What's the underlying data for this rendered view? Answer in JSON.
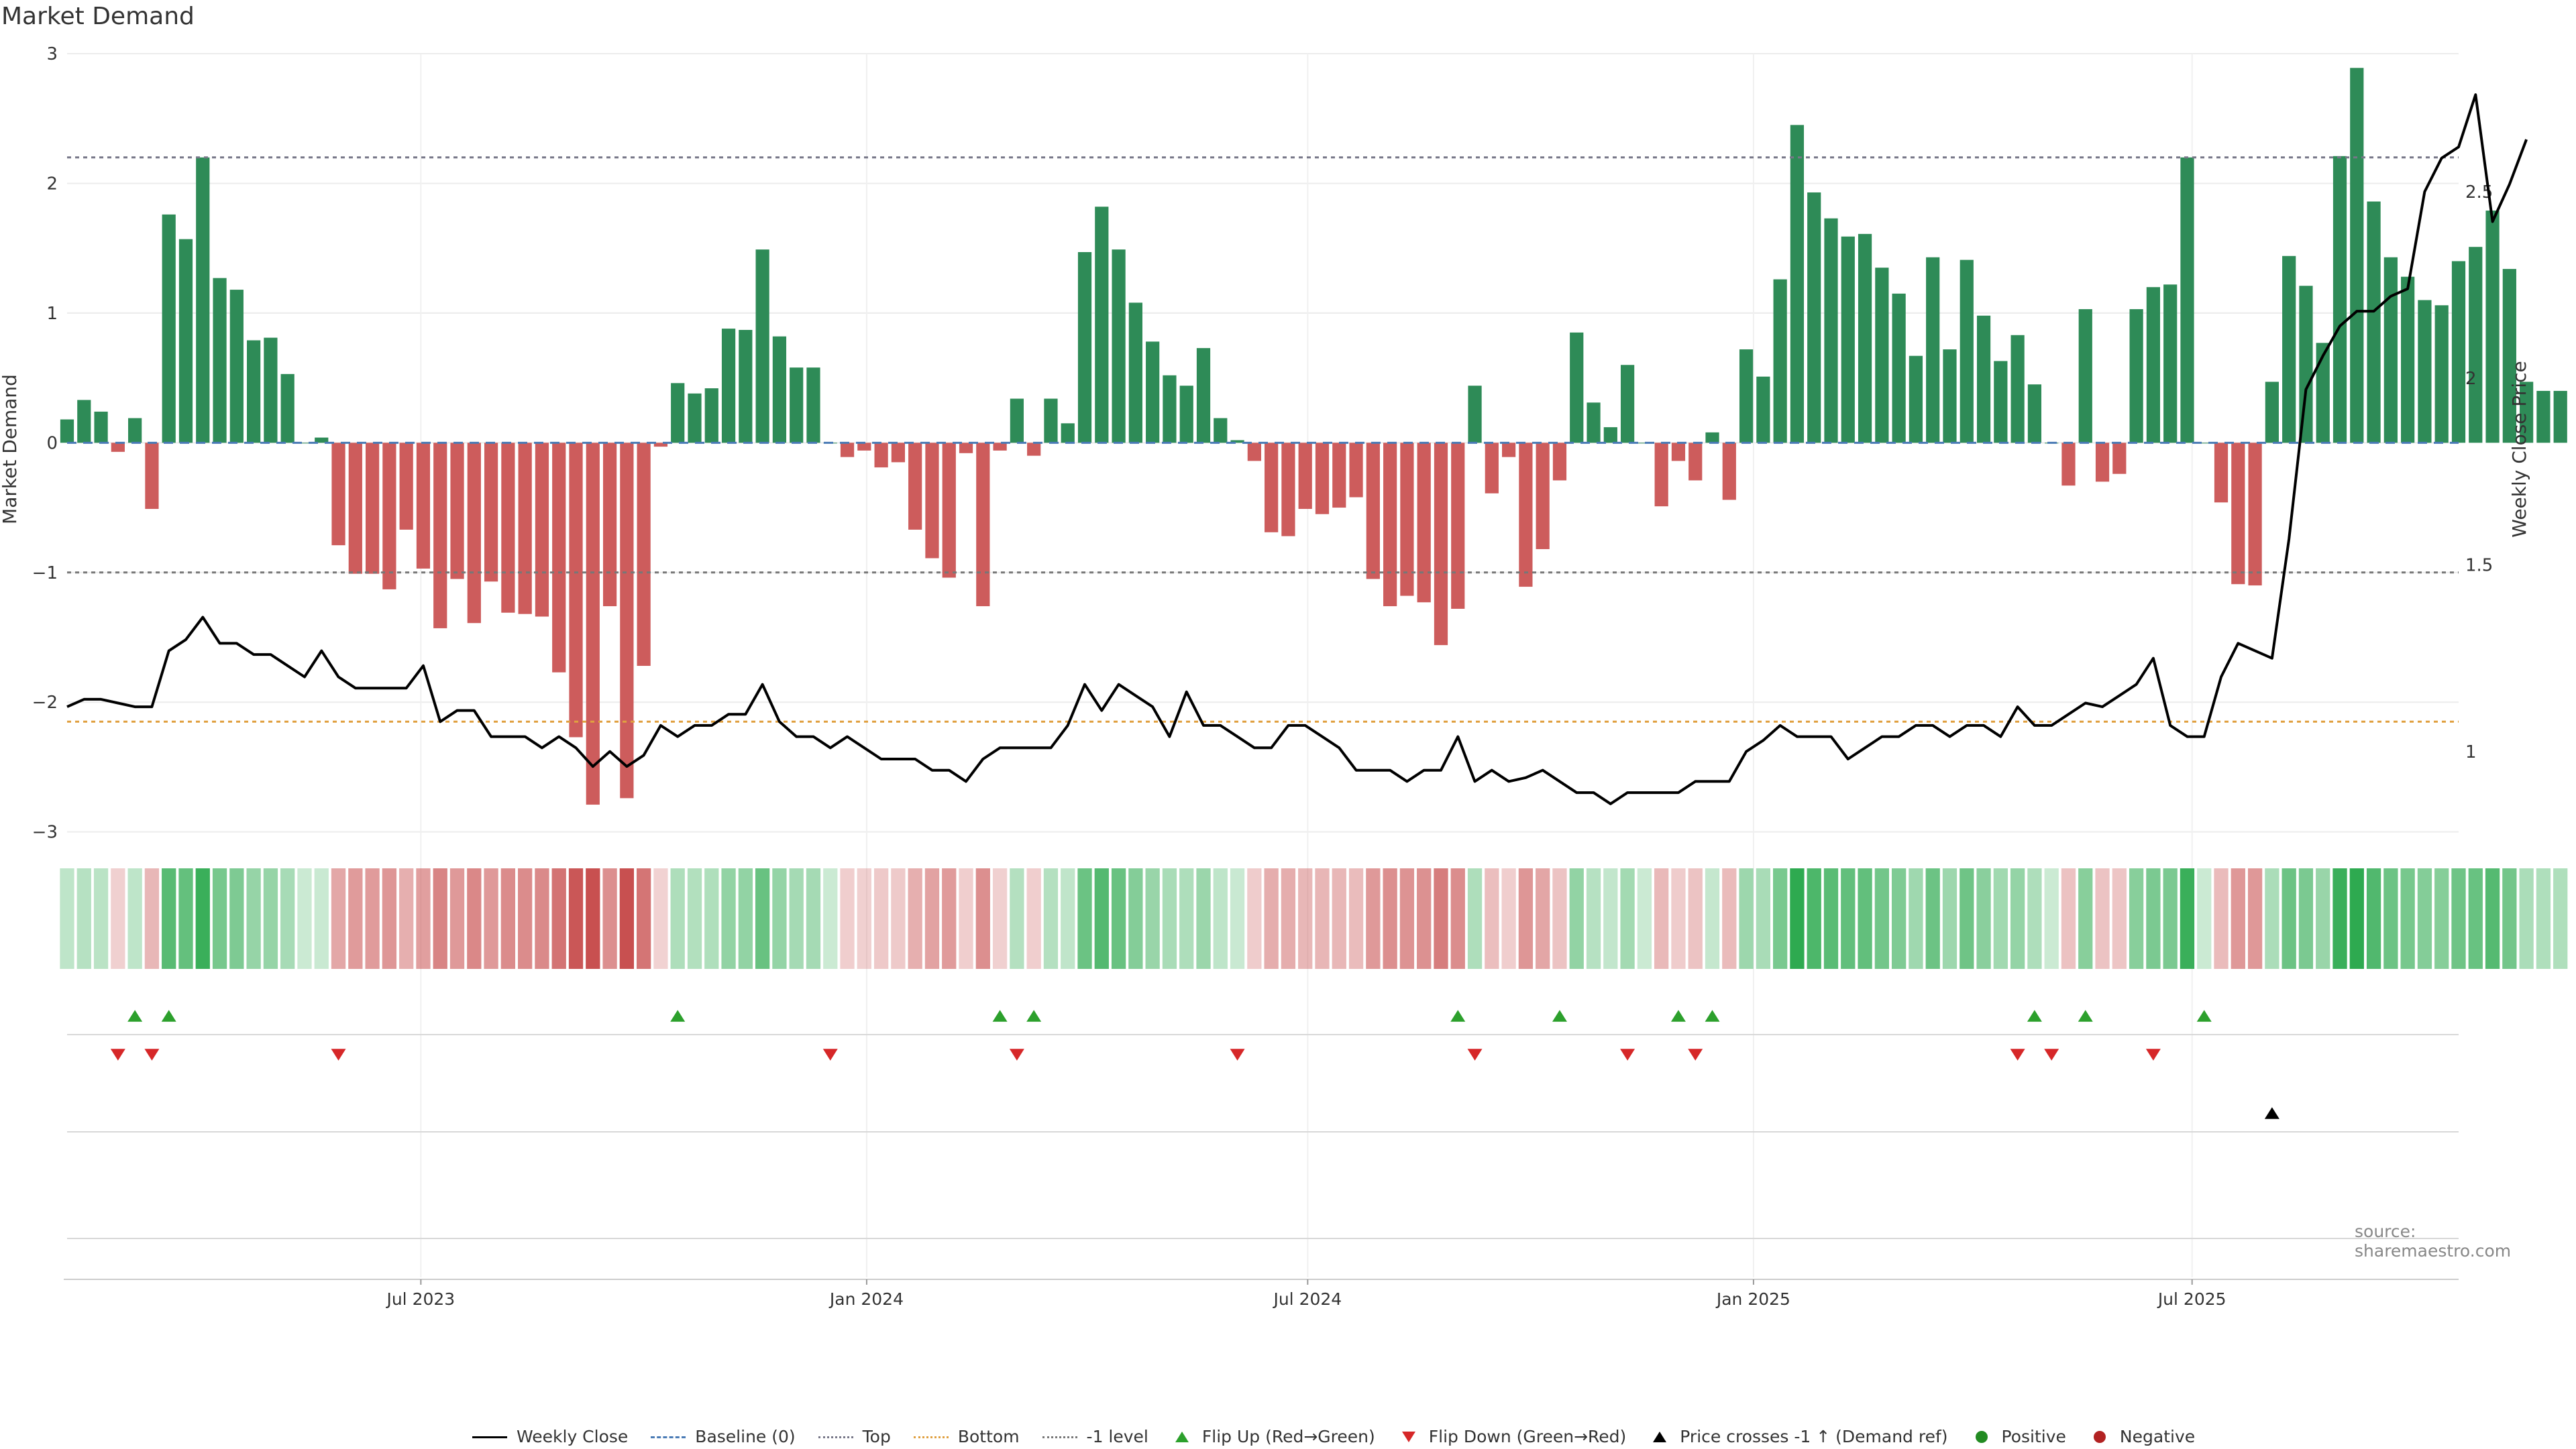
{
  "title": "Market Demand",
  "source": "source: sharemaestro.com",
  "chart_data": {
    "type": "bar",
    "title": "Market Demand",
    "ylabel": "Market Demand",
    "y2label": "Weekly Close Price",
    "ylim": [
      -3.1,
      3.0
    ],
    "y2lim": [
      0.75,
      2.87
    ],
    "yticks": [
      -3,
      -2,
      -1,
      0,
      1,
      2,
      3
    ],
    "y2ticks": [
      1,
      1.5,
      2,
      2.5
    ],
    "xlim": [
      "2023-02-05",
      "2025-10-19"
    ],
    "xticks": [
      {
        "date": "2023-07-01",
        "label": "Jul 2023"
      },
      {
        "date": "2024-01-01",
        "label": "Jan 2024"
      },
      {
        "date": "2024-07-01",
        "label": "Jul 2024"
      },
      {
        "date": "2025-01-01",
        "label": "Jan 2025"
      },
      {
        "date": "2025-07-01",
        "label": "Jul 2025"
      }
    ],
    "start_date": "2023-02-05",
    "week_step_days": 7,
    "reference_lines": {
      "top": 2.2,
      "bottom": -2.15,
      "minus_one": -1
    },
    "demand": [
      0.18,
      0.33,
      0.24,
      -0.07,
      0.19,
      -0.51,
      1.76,
      1.57,
      2.2,
      1.27,
      1.18,
      0.79,
      0.81,
      0.53,
      0.0,
      0.04,
      -0.79,
      -1.01,
      -1.01,
      -1.13,
      -0.67,
      -0.97,
      -1.43,
      -1.05,
      -1.39,
      -1.07,
      -1.31,
      -1.32,
      -1.34,
      -1.77,
      -2.27,
      -2.79,
      -1.26,
      -2.74,
      -1.72,
      -0.03,
      0.46,
      0.38,
      0.42,
      0.88,
      0.87,
      1.49,
      0.82,
      0.58,
      0.58,
      0.0,
      -0.11,
      -0.06,
      -0.19,
      -0.15,
      -0.67,
      -0.89,
      -1.04,
      -0.08,
      -1.26,
      -0.06,
      0.34,
      -0.1,
      0.34,
      0.15,
      1.47,
      1.82,
      1.49,
      1.08,
      0.78,
      0.52,
      0.44,
      0.73,
      0.19,
      0.02,
      -0.14,
      -0.69,
      -0.72,
      -0.51,
      -0.55,
      -0.5,
      -0.42,
      -1.05,
      -1.26,
      -1.18,
      -1.23,
      -1.56,
      -1.28,
      0.44,
      -0.39,
      -0.11,
      -1.11,
      -0.82,
      -0.29,
      0.85,
      0.31,
      0.12,
      0.6,
      0.0,
      -0.49,
      -0.14,
      -0.29,
      0.08,
      -0.44,
      0.72,
      0.51,
      1.26,
      2.45,
      1.93,
      1.73,
      1.59,
      1.61,
      1.35,
      1.15,
      0.67,
      1.43,
      0.72,
      1.41,
      0.98,
      0.63,
      0.83,
      0.45,
      0.0,
      -0.33,
      1.03,
      -0.3,
      -0.24,
      1.03,
      1.2,
      1.22,
      2.2,
      0.0,
      -0.46,
      -1.09,
      -1.1,
      0.47,
      1.44,
      1.21,
      0.77,
      2.21,
      2.89,
      1.86,
      1.43,
      1.28,
      1.1,
      1.06,
      1.4,
      1.51,
      1.79,
      1.34,
      0.47,
      0.4,
      0.4
    ],
    "close": [
      1.12,
      1.14,
      1.14,
      1.13,
      1.12,
      1.12,
      1.27,
      1.3,
      1.36,
      1.29,
      1.29,
      1.26,
      1.26,
      1.23,
      1.2,
      1.27,
      1.2,
      1.17,
      1.17,
      1.17,
      1.17,
      1.23,
      1.08,
      1.11,
      1.11,
      1.04,
      1.04,
      1.04,
      1.01,
      1.04,
      1.01,
      0.96,
      1.0,
      0.96,
      0.99,
      1.07,
      1.04,
      1.07,
      1.07,
      1.1,
      1.1,
      1.18,
      1.08,
      1.04,
      1.04,
      1.01,
      1.04,
      1.01,
      0.98,
      0.98,
      0.98,
      0.95,
      0.95,
      0.92,
      0.98,
      1.01,
      1.01,
      1.01,
      1.01,
      1.07,
      1.18,
      1.11,
      1.18,
      1.15,
      1.12,
      1.04,
      1.16,
      1.07,
      1.07,
      1.04,
      1.01,
      1.01,
      1.07,
      1.07,
      1.04,
      1.01,
      0.95,
      0.95,
      0.95,
      0.92,
      0.95,
      0.95,
      1.04,
      0.92,
      0.95,
      0.92,
      0.93,
      0.95,
      0.92,
      0.89,
      0.89,
      0.86,
      0.89,
      0.89,
      0.89,
      0.89,
      0.92,
      0.92,
      0.92,
      1.0,
      1.03,
      1.07,
      1.04,
      1.04,
      1.04,
      0.98,
      1.01,
      1.04,
      1.04,
      1.07,
      1.07,
      1.04,
      1.07,
      1.07,
      1.04,
      1.12,
      1.07,
      1.07,
      1.1,
      1.13,
      1.12,
      1.15,
      1.18,
      1.25,
      1.07,
      1.04,
      1.04,
      1.2,
      1.29,
      1.27,
      1.25,
      1.57,
      1.97,
      2.06,
      2.14,
      2.18,
      2.18,
      2.22,
      2.24,
      2.5,
      2.59,
      2.62,
      2.76,
      2.42,
      2.52,
      2.64
    ],
    "flip_up_weeks": [
      4,
      6,
      36,
      55,
      57,
      82,
      88,
      95,
      97,
      116,
      119,
      126
    ],
    "flip_down_weeks": [
      3,
      5,
      16,
      45,
      56,
      69,
      83,
      92,
      96,
      115,
      117,
      123
    ],
    "price_cross_weeks": [
      130
    ],
    "colors": {
      "positive_bar": "#2e8b57",
      "negative_bar": "#cd5c5c",
      "close_line": "#000000",
      "baseline": "#4a7bb5",
      "top": "#777788",
      "bottom": "#e0a040",
      "minus_one": "#777777",
      "flip_up": "#2ca02c",
      "flip_down": "#d62728",
      "price_cross": "#000000",
      "positive": "#228b22",
      "negative": "#b22222"
    }
  },
  "legend": [
    {
      "label": "Weekly Close",
      "symbol": "line",
      "color": "#000000",
      "style": "solid"
    },
    {
      "label": "Baseline (0)",
      "symbol": "line",
      "color": "#4a7bb5",
      "style": "dashed"
    },
    {
      "label": "Top",
      "symbol": "line",
      "color": "#777788",
      "style": "dotted"
    },
    {
      "label": "Bottom",
      "symbol": "line",
      "color": "#e0a040",
      "style": "dotted"
    },
    {
      "label": "-1 level",
      "symbol": "line",
      "color": "#777777",
      "style": "dotted"
    },
    {
      "label": "Flip Up (Red→Green)",
      "symbol": "triangle-up",
      "color": "#2ca02c"
    },
    {
      "label": "Flip Down (Green→Red)",
      "symbol": "triangle-down",
      "color": "#d62728"
    },
    {
      "label": "Price crosses -1 ↑ (Demand ref)",
      "symbol": "triangle-up",
      "color": "#000000"
    },
    {
      "label": "Positive",
      "symbol": "circle",
      "color": "#228b22"
    },
    {
      "label": "Negative",
      "symbol": "circle",
      "color": "#b22222"
    }
  ]
}
